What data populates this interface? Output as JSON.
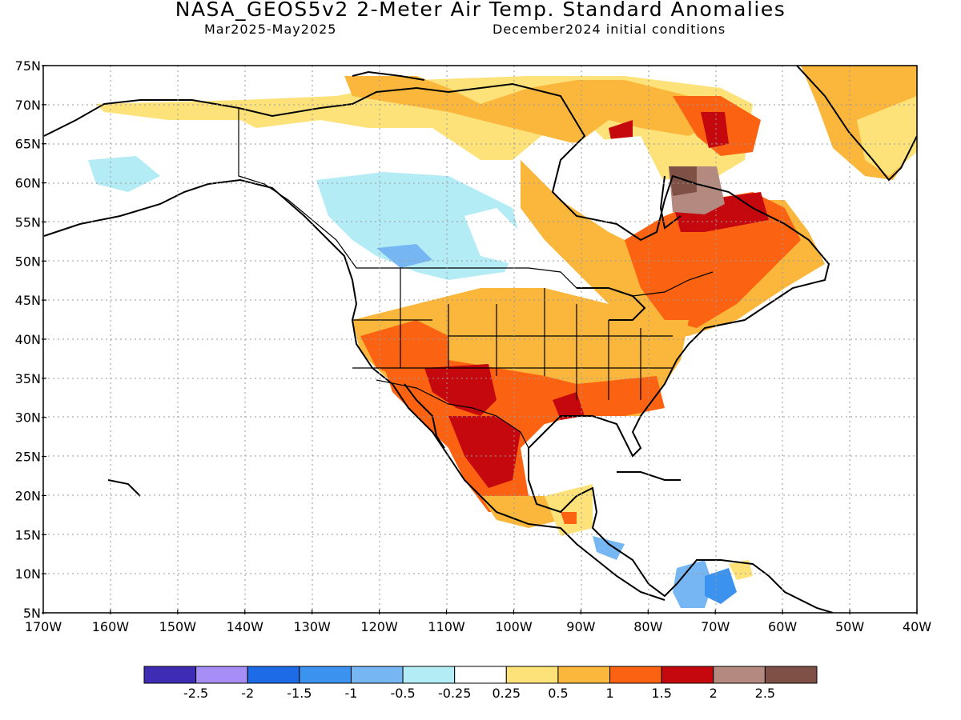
{
  "title": "NASA_GEOS5v2 2-Meter Air Temp. Standard Anomalies",
  "period": "Mar2025-May2025",
  "initial_conditions": "December2024 initial conditions",
  "lat_labels": [
    "75N",
    "70N",
    "65N",
    "60N",
    "55N",
    "50N",
    "45N",
    "40N",
    "35N",
    "30N",
    "25N",
    "20N",
    "15N",
    "10N",
    "5N"
  ],
  "lon_labels": [
    "170W",
    "160W",
    "150W",
    "140W",
    "130W",
    "120W",
    "110W",
    "100W",
    "90W",
    "80W",
    "70W",
    "60W",
    "50W",
    "40W"
  ],
  "colorbar": {
    "colors": [
      "#3f2cb5",
      "#a78ef7",
      "#1e6be8",
      "#3b92ef",
      "#76b6f3",
      "#b4ecf6",
      "#ffffff",
      "#fde27a",
      "#fbb73c",
      "#fb6312",
      "#c5080e",
      "#b48a80",
      "#7e5046"
    ],
    "labels": [
      "-2.5",
      "-2",
      "-1.5",
      "-1",
      "-0.5",
      "-0.25",
      "0.25",
      "0.5",
      "1",
      "1.5",
      "2",
      "2.5"
    ]
  }
}
